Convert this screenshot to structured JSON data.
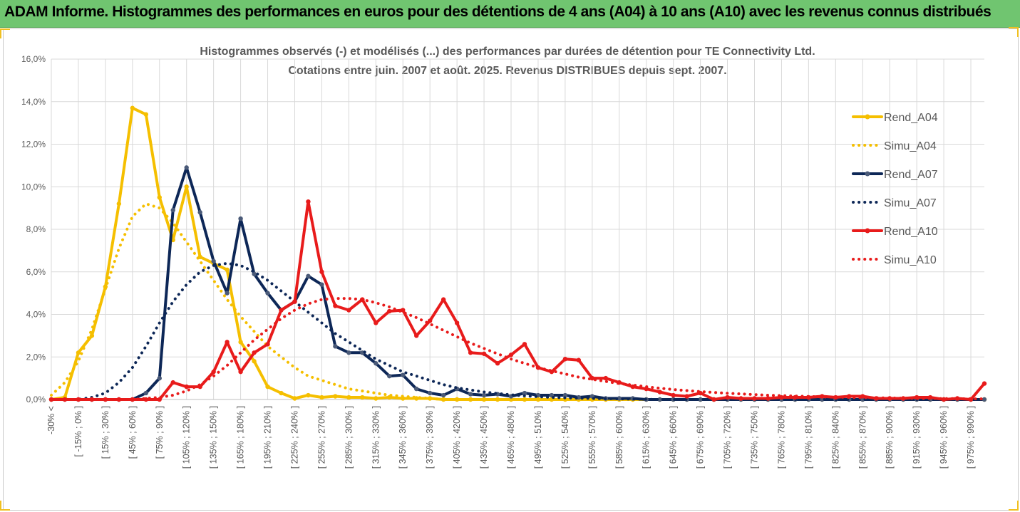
{
  "banner": {
    "title": "ADAM Informe. Histogrammes des performances en euros pour des détentions de 4 ans (A04) à 10 ans (A10) avec les revenus connus distribués",
    "background": "#70c570"
  },
  "chart_data": {
    "type": "line",
    "title_lines": [
      "Histogrammes observés (-) et modélisés (...) des performances par durées de détention pour TE Connectivity Ltd.",
      "Cotations entre juin. 2007 et août. 2025. Revenus DISTRIBUES depuis sept. 2007."
    ],
    "xlabel": "",
    "ylabel": "",
    "ylim": [
      0,
      16
    ],
    "y_ticks": [
      "0,0%",
      "2,0%",
      "4,0%",
      "6,0%",
      "8,0%",
      "10,0%",
      "12,0%",
      "14,0%",
      "16,0%"
    ],
    "grid": true,
    "legend_position": "right",
    "x_tick_labels": [
      "-30% <",
      "[ -15% ; 0% ]",
      "[ 15% ; 30% ]",
      "[ 45% ; 60% ]",
      "[ 75% ; 90% ]",
      "[ 105% ; 120% ]",
      "[ 135% ; 150% ]",
      "[ 165% ; 180% ]",
      "[ 195% ; 210% ]",
      "[ 225% ; 240% ]",
      "[ 255% ; 270% ]",
      "[ 285% ; 300% ]",
      "[ 315% ; 330% ]",
      "[ 345% ; 360% ]",
      "[ 375% ; 390% ]",
      "[ 405% ; 420% ]",
      "[ 435% ; 450% ]",
      "[ 465% ; 480% ]",
      "[ 495% ; 510% ]",
      "[ 525% ; 540% ]",
      "[ 555% ; 570% ]",
      "[ 585% ; 600% ]",
      "[ 615% ; 630% ]",
      "[ 645% ; 660% ]",
      "[ 675% ; 690% ]",
      "[ 705% ; 720% ]",
      "[ 735% ; 750% ]",
      "[ 765% ; 780% ]",
      "[ 795% ; 810% ]",
      "[ 825% ; 840% ]",
      "[ 855% ; 870% ]",
      "[ 885% ; 900% ]",
      "[ 915% ; 930% ]",
      "[ 945% ; 960% ]",
      "[ 975% ; 990% ]"
    ],
    "num_points": 70,
    "series": [
      {
        "name": "Rend_A04",
        "color": "#f5bf00",
        "style": "solid",
        "values": [
          0.0,
          0.1,
          2.2,
          3.0,
          5.3,
          9.2,
          13.7,
          13.4,
          9.5,
          7.5,
          10.0,
          6.7,
          6.4,
          6.1,
          2.7,
          1.8,
          0.6,
          0.3,
          0.05,
          0.2,
          0.1,
          0.15,
          0.1,
          0.1,
          0.05,
          0.1,
          0.05,
          0.05,
          0.05,
          0.0,
          0.0,
          0.0,
          0.0,
          0.0,
          0.0,
          0.0,
          0.0,
          0.0,
          0.0,
          0.0,
          0.0,
          0.0,
          0.0,
          0.0,
          0.0,
          0.0,
          0.0,
          0.0,
          0.0,
          0.0,
          0.0,
          0.0,
          0.0,
          0.0,
          0.0,
          0.0,
          0.0,
          0.0,
          0.0,
          0.0,
          0.0,
          0.0,
          0.0,
          0.0,
          0.0,
          0.0,
          0.0,
          0.0,
          0.0,
          0.0
        ]
      },
      {
        "name": "Simu_A04",
        "color": "#f5bf00",
        "style": "dotted",
        "values": [
          0.2,
          0.8,
          1.8,
          3.3,
          5.2,
          7.1,
          8.6,
          9.2,
          9.0,
          8.3,
          7.4,
          6.5,
          5.6,
          4.7,
          3.9,
          3.2,
          2.5,
          2.0,
          1.5,
          1.1,
          0.9,
          0.7,
          0.5,
          0.4,
          0.3,
          0.2,
          0.15,
          0.1,
          0.05,
          0.0,
          0.0,
          0.0,
          0.0,
          0.0,
          0.0,
          0.0,
          0.0,
          0.0,
          0.0,
          0.0,
          0.0,
          0.0,
          0.0,
          0.0,
          0.0,
          0.0,
          0.0,
          0.0,
          0.0,
          0.0,
          0.0,
          0.0,
          0.0,
          0.0,
          0.0,
          0.0,
          0.0,
          0.0,
          0.0,
          0.0,
          0.0,
          0.0,
          0.0,
          0.0,
          0.0,
          0.0,
          0.0,
          0.0,
          0.0,
          0.0
        ]
      },
      {
        "name": "Rend_A07",
        "color": "#0d2757",
        "style": "solid",
        "values": [
          0.0,
          0.0,
          0.0,
          0.0,
          0.0,
          0.0,
          0.0,
          0.3,
          1.0,
          8.9,
          10.9,
          8.8,
          6.5,
          5.0,
          8.5,
          5.9,
          5.0,
          4.2,
          4.6,
          5.8,
          5.4,
          2.5,
          2.2,
          2.2,
          1.7,
          1.1,
          1.15,
          0.5,
          0.3,
          0.2,
          0.5,
          0.25,
          0.2,
          0.25,
          0.15,
          0.3,
          0.2,
          0.2,
          0.2,
          0.1,
          0.15,
          0.05,
          0.05,
          0.05,
          0.0,
          0.0,
          0.0,
          0.0,
          0.0,
          0.0,
          0.0,
          0.0,
          0.0,
          0.0,
          0.0,
          0.0,
          0.0,
          0.0,
          0.0,
          0.0,
          0.0,
          0.0,
          0.0,
          0.0,
          0.0,
          0.0,
          0.0,
          0.0,
          0.0,
          0.0
        ]
      },
      {
        "name": "Simu_A07",
        "color": "#0d2757",
        "style": "dotted",
        "values": [
          0.0,
          0.0,
          0.0,
          0.1,
          0.3,
          0.8,
          1.5,
          2.5,
          3.6,
          4.6,
          5.4,
          6.0,
          6.3,
          6.4,
          6.3,
          6.0,
          5.6,
          5.1,
          4.6,
          4.1,
          3.6,
          3.1,
          2.7,
          2.3,
          1.9,
          1.6,
          1.3,
          1.1,
          0.9,
          0.7,
          0.55,
          0.45,
          0.35,
          0.28,
          0.22,
          0.17,
          0.13,
          0.1,
          0.08,
          0.06,
          0.05,
          0.04,
          0.03,
          0.02,
          0.01,
          0.0,
          0.0,
          0.0,
          0.0,
          0.0,
          0.0,
          0.0,
          0.0,
          0.0,
          0.0,
          0.0,
          0.0,
          0.0,
          0.0,
          0.0,
          0.0,
          0.0,
          0.0,
          0.0,
          0.0,
          0.0,
          0.0,
          0.0,
          0.0,
          0.0
        ]
      },
      {
        "name": "Rend_A10",
        "color": "#e81b1b",
        "style": "solid",
        "values": [
          0.0,
          0.0,
          0.0,
          0.0,
          0.0,
          0.0,
          0.0,
          0.0,
          0.0,
          0.8,
          0.6,
          0.6,
          1.3,
          2.7,
          1.3,
          2.2,
          2.6,
          4.2,
          4.6,
          9.3,
          6.0,
          4.4,
          4.2,
          4.7,
          3.6,
          4.15,
          4.2,
          3.0,
          3.7,
          4.7,
          3.6,
          2.2,
          2.15,
          1.7,
          2.1,
          2.6,
          1.5,
          1.3,
          1.9,
          1.85,
          1.0,
          1.0,
          0.8,
          0.6,
          0.5,
          0.35,
          0.2,
          0.15,
          0.3,
          0.0,
          0.1,
          0.05,
          0.05,
          0.05,
          0.1,
          0.1,
          0.1,
          0.15,
          0.1,
          0.15,
          0.15,
          0.05,
          0.05,
          0.05,
          0.1,
          0.1,
          0.0,
          0.05,
          0.0,
          0.75
        ]
      },
      {
        "name": "Simu_A10",
        "color": "#e81b1b",
        "style": "dotted",
        "values": [
          0.0,
          0.0,
          0.0,
          0.0,
          0.0,
          0.0,
          0.0,
          0.05,
          0.1,
          0.2,
          0.4,
          0.7,
          1.1,
          1.6,
          2.2,
          2.8,
          3.3,
          3.8,
          4.2,
          4.5,
          4.7,
          4.75,
          4.75,
          4.7,
          4.55,
          4.35,
          4.1,
          3.85,
          3.55,
          3.25,
          2.95,
          2.65,
          2.4,
          2.15,
          1.9,
          1.7,
          1.5,
          1.35,
          1.2,
          1.05,
          0.95,
          0.85,
          0.75,
          0.68,
          0.6,
          0.53,
          0.47,
          0.42,
          0.37,
          0.33,
          0.29,
          0.26,
          0.23,
          0.2,
          0.18,
          0.16,
          0.14,
          0.12,
          0.11,
          0.1,
          0.09,
          0.08,
          0.07,
          0.06,
          0.05,
          0.05,
          0.04,
          0.04,
          0.03,
          0.03
        ]
      }
    ]
  }
}
